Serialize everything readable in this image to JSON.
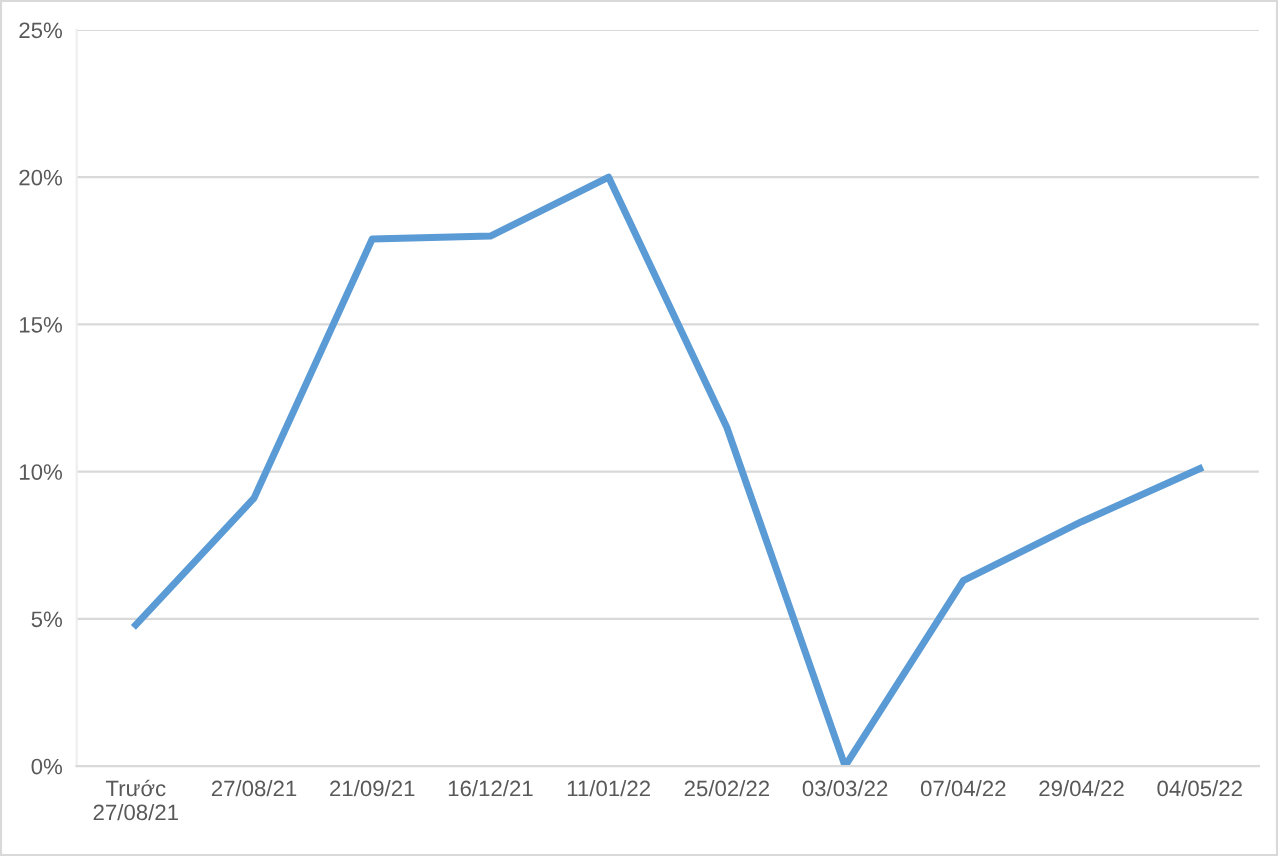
{
  "chart_data": {
    "type": "line",
    "categories": [
      "Trước\n27/08/21",
      "27/08/21",
      "21/09/21",
      "16/12/21",
      "11/01/22",
      "25/02/22",
      "03/03/22",
      "07/04/22",
      "29/04/22",
      "04/05/22"
    ],
    "series": [
      {
        "color": "#5b9bd5",
        "values": [
          4.8,
          9.1,
          17.9,
          18.0,
          20.0,
          11.5,
          0.0,
          6.3,
          8.3,
          10.1
        ]
      }
    ],
    "ylim": [
      0,
      25
    ],
    "yticks": [
      {
        "value": 0,
        "label": "0%"
      },
      {
        "value": 5,
        "label": "5%"
      },
      {
        "value": 10,
        "label": "10%"
      },
      {
        "value": 15,
        "label": "15%"
      },
      {
        "value": 20,
        "label": "20%"
      },
      {
        "value": 25,
        "label": "25%"
      }
    ],
    "grid": "y",
    "marker": "none",
    "line_style": "solid",
    "legend": false
  }
}
